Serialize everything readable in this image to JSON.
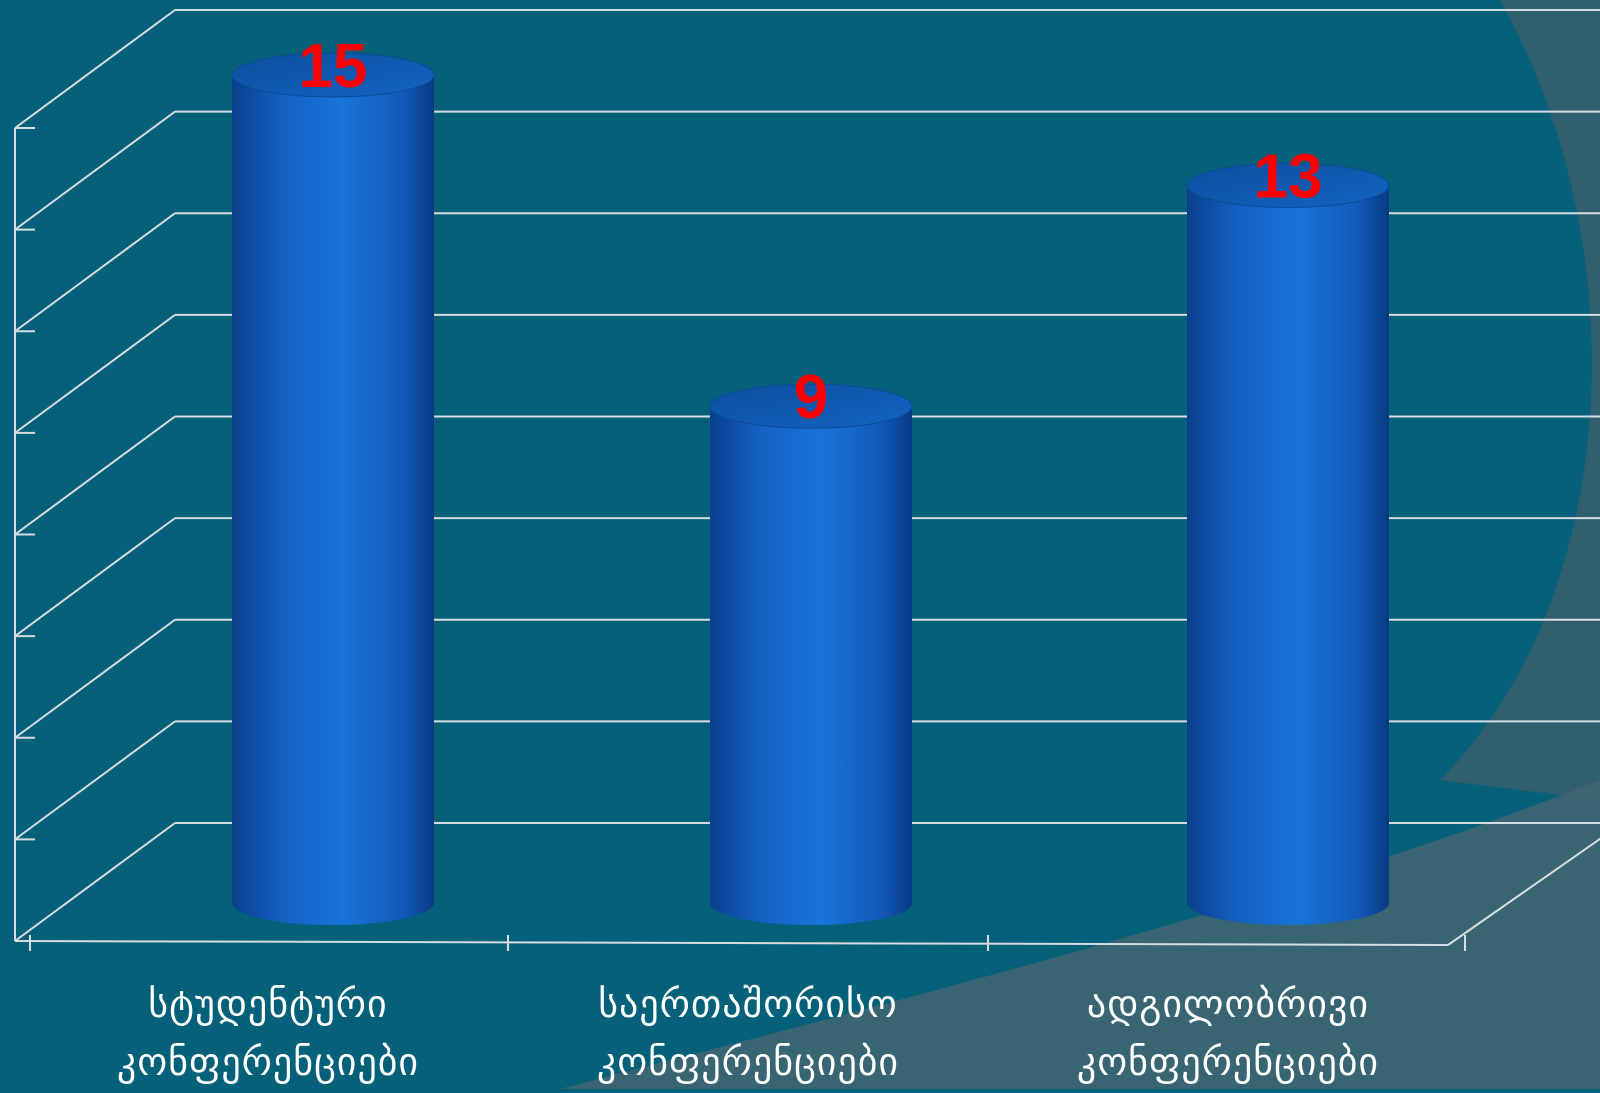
{
  "chart_data": {
    "type": "bar",
    "style": "3d-cylinder",
    "categories": [
      [
        "სტუდენტური",
        "კონფერენციები"
      ],
      [
        "საერთაშორისო",
        "კონფერენციები"
      ],
      [
        "ადგილობრივი",
        "კონფერენციები"
      ]
    ],
    "values": [
      15,
      9,
      13
    ],
    "data_labels": [
      "15",
      "9",
      "13"
    ],
    "ylim": [
      0,
      16
    ],
    "grid": true,
    "legend": "none"
  },
  "colors": {
    "background": "#05607a",
    "bar": "#1266c8",
    "data_label": "#ff0000",
    "grid": "#d8dde2"
  }
}
